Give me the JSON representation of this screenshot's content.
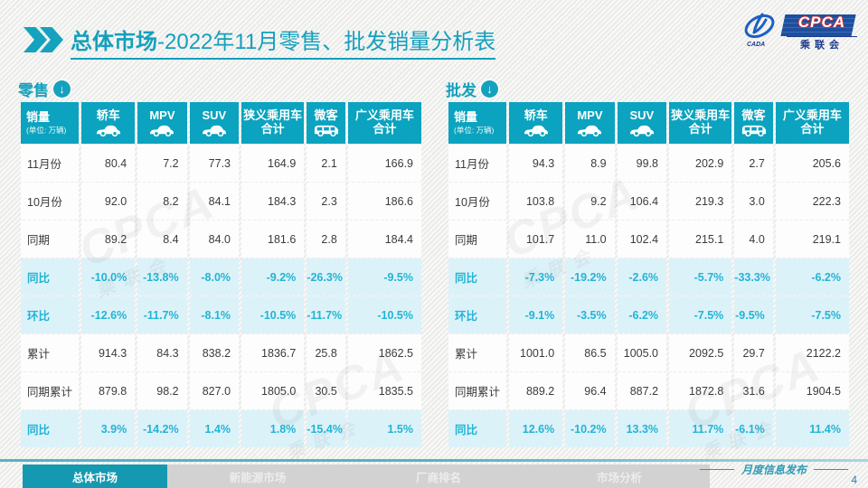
{
  "header": {
    "title_prefix": "总体市场",
    "title_rest": "-2022年11月零售、批发销量分析表"
  },
  "logo": {
    "acronym": "CPCA",
    "cn_name": "乘联会",
    "emblem_text": "CADA"
  },
  "colors": {
    "accent_teal": "#14a0bd",
    "table_header_bg": "#0ba3bf",
    "highlight_row_bg": "#dcf2f9",
    "highlight_text": "#23b4d4",
    "active_tab_bg": "#1599b1"
  },
  "columns": [
    {
      "label": "销量",
      "sub": "(单位: 万辆)",
      "icon": null
    },
    {
      "label": "轿车",
      "icon": "sedan"
    },
    {
      "label": "MPV",
      "icon": "mpv"
    },
    {
      "label": "SUV",
      "icon": "suv"
    },
    {
      "label": "狭义乘用车",
      "label2": "合计",
      "icon": null
    },
    {
      "label": "微客",
      "icon": "van"
    },
    {
      "label": "广义乘用车",
      "label2": "合计",
      "icon": null
    }
  ],
  "tables": {
    "retail": {
      "label": "零售",
      "rows": [
        {
          "label": "11月份",
          "highlight": false,
          "values": [
            "80.4",
            "7.2",
            "77.3",
            "164.9",
            "2.1",
            "166.9"
          ]
        },
        {
          "label": "10月份",
          "highlight": false,
          "values": [
            "92.0",
            "8.2",
            "84.1",
            "184.3",
            "2.3",
            "186.6"
          ]
        },
        {
          "label": "同期",
          "highlight": false,
          "values": [
            "89.2",
            "8.4",
            "84.0",
            "181.6",
            "2.8",
            "184.4"
          ]
        },
        {
          "label": "同比",
          "highlight": true,
          "values": [
            "-10.0%",
            "-13.8%",
            "-8.0%",
            "-9.2%",
            "-26.3%",
            "-9.5%"
          ]
        },
        {
          "label": "环比",
          "highlight": true,
          "values": [
            "-12.6%",
            "-11.7%",
            "-8.1%",
            "-10.5%",
            "-11.7%",
            "-10.5%"
          ]
        },
        {
          "label": "累计",
          "highlight": false,
          "values": [
            "914.3",
            "84.3",
            "838.2",
            "1836.7",
            "25.8",
            "1862.5"
          ]
        },
        {
          "label": "同期累计",
          "highlight": false,
          "values": [
            "879.8",
            "98.2",
            "827.0",
            "1805.0",
            "30.5",
            "1835.5"
          ]
        },
        {
          "label": "同比",
          "highlight": true,
          "values": [
            "3.9%",
            "-14.2%",
            "1.4%",
            "1.8%",
            "-15.4%",
            "1.5%"
          ]
        }
      ]
    },
    "wholesale": {
      "label": "批发",
      "rows": [
        {
          "label": "11月份",
          "highlight": false,
          "values": [
            "94.3",
            "8.9",
            "99.8",
            "202.9",
            "2.7",
            "205.6"
          ]
        },
        {
          "label": "10月份",
          "highlight": false,
          "values": [
            "103.8",
            "9.2",
            "106.4",
            "219.3",
            "3.0",
            "222.3"
          ]
        },
        {
          "label": "同期",
          "highlight": false,
          "values": [
            "101.7",
            "11.0",
            "102.4",
            "215.1",
            "4.0",
            "219.1"
          ]
        },
        {
          "label": "同比",
          "highlight": true,
          "values": [
            "-7.3%",
            "-19.2%",
            "-2.6%",
            "-5.7%",
            "-33.3%",
            "-6.2%"
          ]
        },
        {
          "label": "环比",
          "highlight": true,
          "values": [
            "-9.1%",
            "-3.5%",
            "-6.2%",
            "-7.5%",
            "-9.5%",
            "-7.5%"
          ]
        },
        {
          "label": "累计",
          "highlight": false,
          "values": [
            "1001.0",
            "86.5",
            "1005.0",
            "2092.5",
            "29.7",
            "2122.2"
          ]
        },
        {
          "label": "同期累计",
          "highlight": false,
          "values": [
            "889.2",
            "96.4",
            "887.2",
            "1872.8",
            "31.6",
            "1904.5"
          ]
        },
        {
          "label": "同比",
          "highlight": true,
          "values": [
            "12.6%",
            "-10.2%",
            "13.3%",
            "11.7%",
            "-6.1%",
            "11.4%"
          ]
        }
      ]
    }
  },
  "watermark": {
    "text": "CPCA",
    "sub": "乘联会"
  },
  "footer": {
    "tabs": [
      {
        "label": "总体市场",
        "active": true
      },
      {
        "label": "新能源市场",
        "active": false
      },
      {
        "label": "厂商排名",
        "active": false
      },
      {
        "label": "市场分析",
        "active": false
      }
    ],
    "note": "月度信息发布",
    "page": "4"
  }
}
